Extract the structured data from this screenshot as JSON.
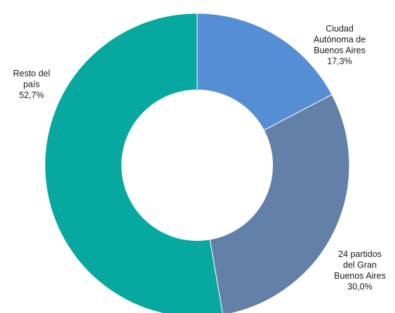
{
  "chart_data": {
    "type": "pie",
    "variant": "donut",
    "categories": [
      "Ciudad Autónoma de Buenos Aires",
      "24 partidos del Gran Buenos Aires",
      "Resto del país"
    ],
    "values": [
      17.3,
      30.0,
      52.7
    ],
    "unit": "%",
    "colors": [
      "#558ed5",
      "#6380a8",
      "#06a89f"
    ],
    "labels": [
      {
        "lines": [
          "Ciudad",
          "Autónoma de",
          "Buenos Aires",
          "17,3%"
        ]
      },
      {
        "lines": [
          "24 partidos",
          "del Gran",
          "Buenos Aires",
          "30,0%"
        ]
      },
      {
        "lines": [
          "Resto del",
          "país",
          "52,7%"
        ]
      }
    ]
  }
}
